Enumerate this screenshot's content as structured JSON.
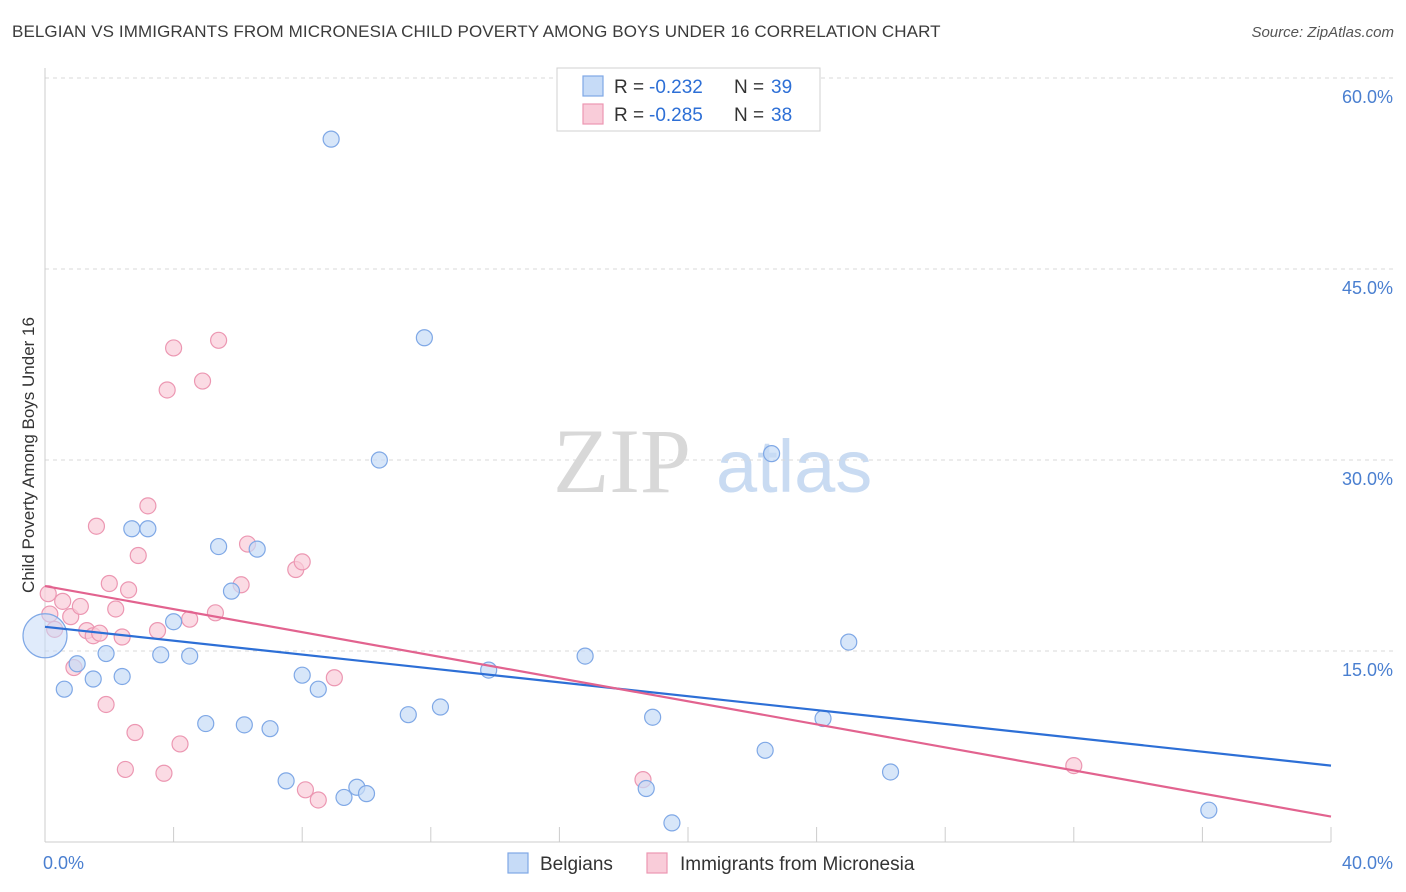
{
  "title": "BELGIAN VS IMMIGRANTS FROM MICRONESIA CHILD POVERTY AMONG BOYS UNDER 16 CORRELATION CHART",
  "source": "Source: ZipAtlas.com",
  "watermark": {
    "zip": "ZIP",
    "atlas": "atlas"
  },
  "colors": {
    "belgians_fill": "#c6dbf7",
    "belgians_stroke": "#7fa8e6",
    "belgians_line": "#2d6fd6",
    "micronesia_fill": "#f9ccd9",
    "micronesia_stroke": "#ec97b2",
    "micronesia_line": "#e2638f",
    "tick_text": "#4a7fd0",
    "grid": "#d9d9d9"
  },
  "legend": {
    "items": [
      {
        "r_label": "R = ",
        "r_value": "-0.232",
        "n_label": "N = ",
        "n_value": "39"
      },
      {
        "r_label": "R = ",
        "r_value": "-0.285",
        "n_label": "N = ",
        "n_value": "38"
      }
    ]
  },
  "chart_data": {
    "type": "scatter",
    "title": "BELGIAN VS IMMIGRANTS FROM MICRONESIA CHILD POVERTY AMONG BOYS UNDER 16 CORRELATION CHART",
    "xlabel": "",
    "ylabel": "Child Poverty Among Boys Under 16",
    "xlim": [
      0,
      40
    ],
    "ylim": [
      0,
      60
    ],
    "x_tick_labels": [
      "0.0%",
      "40.0%"
    ],
    "y_ticks": [
      15,
      30,
      45,
      60
    ],
    "y_tick_labels": [
      "15.0%",
      "30.0%",
      "45.0%",
      "60.0%"
    ],
    "grid": true,
    "series": [
      {
        "name": "Belgians",
        "r": -0.232,
        "n": 39,
        "trend": {
          "x": [
            0,
            40
          ],
          "y": [
            16.9,
            6.0
          ]
        },
        "points": [
          {
            "x": 0.0,
            "y": 16.2,
            "big": true
          },
          {
            "x": 0.6,
            "y": 12.0
          },
          {
            "x": 1.0,
            "y": 14.0
          },
          {
            "x": 1.5,
            "y": 12.8
          },
          {
            "x": 1.9,
            "y": 14.8
          },
          {
            "x": 2.4,
            "y": 13.0
          },
          {
            "x": 2.7,
            "y": 24.6
          },
          {
            "x": 3.2,
            "y": 24.6
          },
          {
            "x": 3.6,
            "y": 14.7
          },
          {
            "x": 4.0,
            "y": 17.3
          },
          {
            "x": 4.5,
            "y": 14.6
          },
          {
            "x": 5.0,
            "y": 9.3
          },
          {
            "x": 5.4,
            "y": 23.2
          },
          {
            "x": 5.8,
            "y": 19.7
          },
          {
            "x": 6.2,
            "y": 9.2
          },
          {
            "x": 6.6,
            "y": 23.0
          },
          {
            "x": 7.0,
            "y": 8.9
          },
          {
            "x": 7.5,
            "y": 4.8
          },
          {
            "x": 8.0,
            "y": 13.1
          },
          {
            "x": 8.5,
            "y": 12.0
          },
          {
            "x": 8.9,
            "y": 55.2
          },
          {
            "x": 9.3,
            "y": 3.5
          },
          {
            "x": 9.7,
            "y": 4.3
          },
          {
            "x": 10.0,
            "y": 3.8
          },
          {
            "x": 10.4,
            "y": 30.0
          },
          {
            "x": 11.3,
            "y": 10.0
          },
          {
            "x": 11.8,
            "y": 39.6
          },
          {
            "x": 12.3,
            "y": 10.6
          },
          {
            "x": 13.8,
            "y": 13.5
          },
          {
            "x": 16.8,
            "y": 14.6
          },
          {
            "x": 18.7,
            "y": 4.2
          },
          {
            "x": 18.9,
            "y": 9.8
          },
          {
            "x": 19.5,
            "y": 1.5
          },
          {
            "x": 22.4,
            "y": 7.2
          },
          {
            "x": 22.6,
            "y": 30.5
          },
          {
            "x": 24.2,
            "y": 9.7
          },
          {
            "x": 25.0,
            "y": 15.7
          },
          {
            "x": 26.3,
            "y": 5.5
          },
          {
            "x": 36.2,
            "y": 2.5
          }
        ]
      },
      {
        "name": "Immigrants from Micronesia",
        "r": -0.285,
        "n": 38,
        "trend": {
          "x": [
            0,
            40
          ],
          "y": [
            20.1,
            2.0
          ]
        },
        "points": [
          {
            "x": 0.15,
            "y": 17.9
          },
          {
            "x": 0.3,
            "y": 16.7
          },
          {
            "x": 0.55,
            "y": 18.9
          },
          {
            "x": 0.8,
            "y": 17.7
          },
          {
            "x": 0.9,
            "y": 13.7
          },
          {
            "x": 1.1,
            "y": 18.5
          },
          {
            "x": 1.3,
            "y": 16.6
          },
          {
            "x": 1.5,
            "y": 16.2
          },
          {
            "x": 1.6,
            "y": 24.8
          },
          {
            "x": 1.7,
            "y": 16.4
          },
          {
            "x": 1.9,
            "y": 10.8
          },
          {
            "x": 2.0,
            "y": 20.3
          },
          {
            "x": 2.2,
            "y": 18.3
          },
          {
            "x": 2.4,
            "y": 16.1
          },
          {
            "x": 2.5,
            "y": 5.7
          },
          {
            "x": 2.6,
            "y": 19.8
          },
          {
            "x": 2.8,
            "y": 8.6
          },
          {
            "x": 2.9,
            "y": 22.5
          },
          {
            "x": 3.2,
            "y": 26.4
          },
          {
            "x": 3.5,
            "y": 16.6
          },
          {
            "x": 3.7,
            "y": 5.4
          },
          {
            "x": 3.8,
            "y": 35.5
          },
          {
            "x": 4.0,
            "y": 38.8
          },
          {
            "x": 4.2,
            "y": 7.7
          },
          {
            "x": 4.5,
            "y": 17.5
          },
          {
            "x": 4.9,
            "y": 36.2
          },
          {
            "x": 5.3,
            "y": 18.0
          },
          {
            "x": 5.4,
            "y": 39.4
          },
          {
            "x": 6.1,
            "y": 20.2
          },
          {
            "x": 6.3,
            "y": 23.4
          },
          {
            "x": 7.8,
            "y": 21.4
          },
          {
            "x": 8.0,
            "y": 22.0
          },
          {
            "x": 8.1,
            "y": 4.1
          },
          {
            "x": 8.5,
            "y": 3.3
          },
          {
            "x": 9.0,
            "y": 12.9
          },
          {
            "x": 18.6,
            "y": 4.9
          },
          {
            "x": 32.0,
            "y": 6.0
          },
          {
            "x": 0.1,
            "y": 19.5
          }
        ]
      }
    ]
  }
}
